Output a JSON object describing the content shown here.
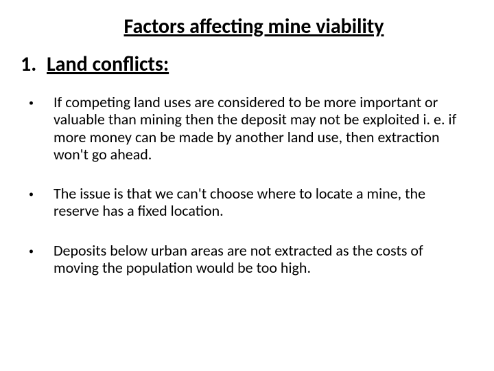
{
  "title": "Factors affecting mine viability",
  "section": {
    "number": "1.",
    "heading": "Land conflicts: "
  },
  "bullets": [
    "If competing land uses are considered to be more important or valuable than mining then the deposit may not be exploited i. e. if more money can be made by another land use, then extraction won't go ahead.",
    "The issue is that we can't choose where to locate a mine, the reserve has a fixed location.",
    "Deposits below urban areas are not extracted as the costs of moving the population would be too high."
  ],
  "colors": {
    "background": "#ffffff",
    "text": "#000000"
  },
  "fonts": {
    "title_size": 30,
    "heading_size": 30,
    "body_size": 22
  }
}
